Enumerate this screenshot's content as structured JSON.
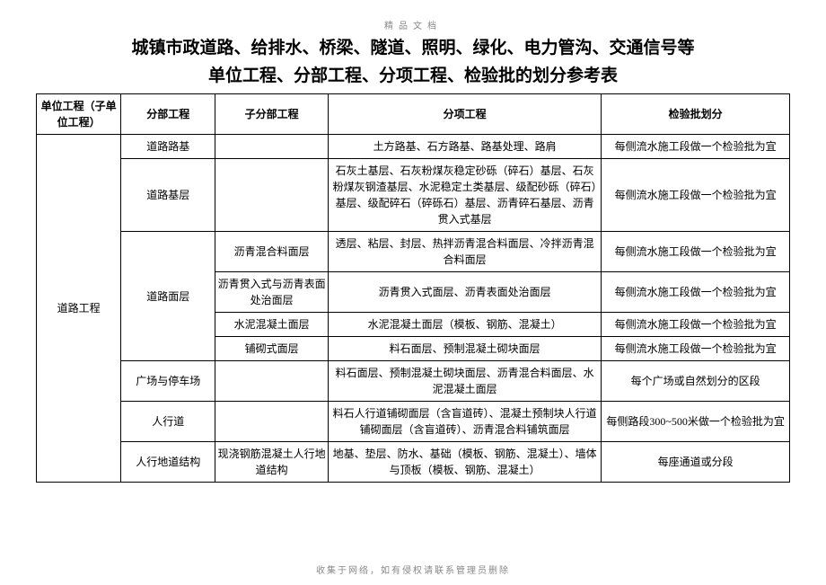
{
  "header_small": "精品文档",
  "title_line1": "城镇市政道路、给排水、桥梁、隧道、照明、绿化、电力管沟、交通信号等",
  "title_line2": "单位工程、分部工程、分项工程、检验批的划分参考表",
  "footer_small": "收集于网络，如有侵权请联系管理员删除",
  "columns": {
    "c1": "单位工程（子单位工程）",
    "c2": "分部工程",
    "c3": "子分部工程",
    "c4": "分项工程",
    "c5": "检验批划分"
  },
  "unit_project": "道路工程",
  "rows": [
    {
      "part": "道路路基",
      "sub": "",
      "items": "土方路基、石方路基、路基处理、路肩",
      "check": "每侧流水施工段做一个检验批为宜"
    },
    {
      "part": "道路基层",
      "sub": "",
      "items": "石灰土基层、石灰粉煤灰稳定砂砾（碎石）基层、石灰粉煤灰钢渣基层、水泥稳定土类基层、级配砂砾（碎石）基层、级配碎石（碎砾石）基层、沥青碎石基层、沥青贯入式基层",
      "check": "每侧流水施工段做一个检验批为宜"
    },
    {
      "part": "道路面层",
      "sub": "沥青混合料面层",
      "items": "透层、粘层、封层、热拌沥青混合料面层、冷拌沥青混合料面层",
      "check": "每侧流水施工段做一个检验批为宜"
    },
    {
      "part": "",
      "sub": "沥青贯入式与沥青表面处治面层",
      "items": "沥青贯入式面层、沥青表面处治面层",
      "check": "每侧流水施工段做一个检验批为宜"
    },
    {
      "part": "",
      "sub": "水泥混凝土面层",
      "items": "水泥混凝土面层（模板、钢筋、混凝土）",
      "check": "每侧流水施工段做一个检验批为宜"
    },
    {
      "part": "",
      "sub": "铺砌式面层",
      "items": "料石面层、预制混凝土砌块面层",
      "check": "每侧流水施工段做一个检验批为宜"
    },
    {
      "part": "广场与停车场",
      "sub": "",
      "items": "料石面层、预制混凝土砌块面层、沥青混合料面层、水泥混凝土面层",
      "check": "每个广场或自然划分的区段"
    },
    {
      "part": "人行道",
      "sub": "",
      "items": "料石人行道铺砌面层（含盲道砖）、混凝土预制块人行道铺砌面层（含盲道砖）、沥青混合料铺筑面层",
      "check": "每侧路段300~500米做一个检验批为宜"
    },
    {
      "part": "人行地道结构",
      "sub": "现浇钢筋混凝土人行地道结构",
      "items": "地基、垫层、防水、基础（模板、钢筋、混凝土）、墙体与顶板（模板、钢筋、混凝土）",
      "check": "每座通道或分段"
    }
  ]
}
